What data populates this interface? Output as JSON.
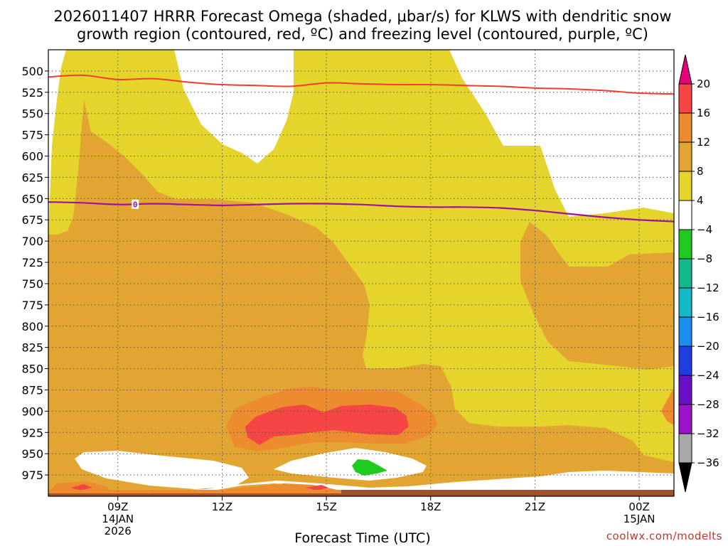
{
  "chart_data": {
    "type": "time-height cross-section (filled contour)",
    "title_line1": "2026011407 HRRR Forecast Omega (shaded, μbar/s) for KLWS with dendritic snow",
    "title_line2": "growth region (contoured, red, ºC) and freezing level (contoured, purple, ºC)",
    "xlabel": "Forecast Time (UTC)",
    "ylabel": "",
    "x_range_hours_from_07z": [
      0,
      18
    ],
    "y_range_mb": [
      1000,
      475
    ],
    "y_ticks": [
      "500",
      "525",
      "550",
      "575",
      "600",
      "625",
      "650",
      "675",
      "700",
      "725",
      "750",
      "775",
      "800",
      "825",
      "850",
      "875",
      "900",
      "925",
      "950",
      "975"
    ],
    "x_ticks": [
      {
        "hour": 2,
        "lines": [
          "09Z",
          "14JAN",
          "2026"
        ]
      },
      {
        "hour": 5,
        "lines": [
          "12Z"
        ]
      },
      {
        "hour": 8,
        "lines": [
          "15Z"
        ]
      },
      {
        "hour": 11,
        "lines": [
          "18Z"
        ]
      },
      {
        "hour": 14,
        "lines": [
          "21Z"
        ]
      },
      {
        "hour": 17,
        "lines": [
          "00Z",
          "15JAN"
        ]
      }
    ],
    "colorbar": {
      "units": "μbar/s",
      "labels": [
        "20",
        "16",
        "12",
        "8",
        "4",
        "-4",
        "-8",
        "-12",
        "-16",
        "-20",
        "-24",
        "-28",
        "-32",
        "-36"
      ],
      "bands": [
        {
          "range": ">20",
          "color": "#e8007a"
        },
        {
          "range": "16 to 20",
          "color": "#f54545"
        },
        {
          "range": "12 to 16",
          "color": "#ec8c2e"
        },
        {
          "range": "8 to 12",
          "color": "#e2a532"
        },
        {
          "range": "4 to 8",
          "color": "#e5d42c"
        },
        {
          "range": "-4 to 4",
          "color": "#ffffff"
        },
        {
          "range": "-8 to -4",
          "color": "#1ecb1e"
        },
        {
          "range": "-12 to -8",
          "color": "#13b98c"
        },
        {
          "range": "-16 to -12",
          "color": "#12b9c9"
        },
        {
          "range": "-20 to -16",
          "color": "#1b8ef0"
        },
        {
          "range": "-24 to -20",
          "color": "#1f3ee0"
        },
        {
          "range": "-28 to -24",
          "color": "#6a10c8"
        },
        {
          "range": "-32 to -28",
          "color": "#9b12c8"
        },
        {
          "range": "-36 to -32",
          "color": "#a8a8a8"
        },
        {
          "range": "<-36",
          "color": "#000000"
        }
      ]
    },
    "dendritic_growth_top_contour_mb": [
      [
        0,
        507
      ],
      [
        1,
        505
      ],
      [
        2,
        510
      ],
      [
        3,
        509
      ],
      [
        4,
        513
      ],
      [
        5,
        516
      ],
      [
        6,
        517
      ],
      [
        7,
        518
      ],
      [
        8,
        514
      ],
      [
        9,
        515
      ],
      [
        10,
        516
      ],
      [
        11,
        516
      ],
      [
        12,
        517
      ],
      [
        13,
        518
      ],
      [
        14,
        520
      ],
      [
        15,
        521
      ],
      [
        16,
        523
      ],
      [
        17,
        526
      ],
      [
        18,
        527
      ]
    ],
    "freezing_level_contour_mb": {
      "label": "0",
      "points": [
        [
          0,
          654
        ],
        [
          1,
          655
        ],
        [
          2,
          657
        ],
        [
          3,
          656
        ],
        [
          4,
          657
        ],
        [
          5,
          658
        ],
        [
          6,
          657
        ],
        [
          7,
          656
        ],
        [
          8,
          656
        ],
        [
          9,
          657
        ],
        [
          10,
          659
        ],
        [
          11,
          660
        ],
        [
          12,
          660
        ],
        [
          13,
          661
        ],
        [
          14,
          664
        ],
        [
          15,
          668
        ],
        [
          16,
          672
        ],
        [
          17,
          675
        ],
        [
          18,
          677
        ]
      ]
    },
    "omega_peak": {
      "value_range": "16 to 20",
      "level_mb": 890,
      "hours": [
        5.5,
        10.3
      ]
    },
    "credit": "coolwx.com/modelts"
  }
}
